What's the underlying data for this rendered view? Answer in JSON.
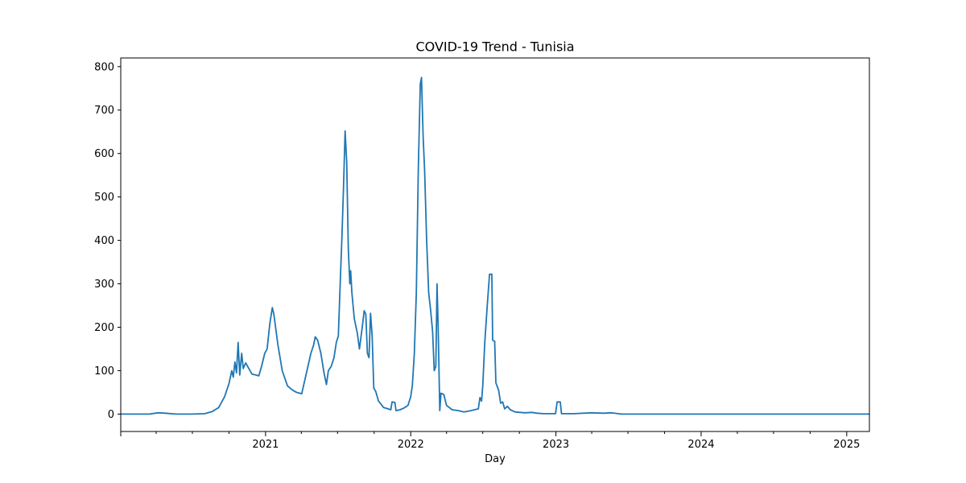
{
  "chart_data": {
    "type": "line",
    "title": "COVID-19 Trend - Tunisia",
    "xlabel": "Day",
    "ylabel": "",
    "xlim": [
      "2020-01-03",
      "2025-02-27"
    ],
    "ylim": [
      -40,
      820
    ],
    "grid": false,
    "legend": "none",
    "line_color": "#1f77b4",
    "y_ticks": [
      0,
      100,
      200,
      300,
      400,
      500,
      600,
      700,
      800
    ],
    "x_ticks": [
      {
        "date": "2021-01-01",
        "label": "2021"
      },
      {
        "date": "2022-01-01",
        "label": "2022"
      },
      {
        "date": "2023-01-01",
        "label": "2023"
      },
      {
        "date": "2024-01-01",
        "label": "2024"
      },
      {
        "date": "2025-01-01",
        "label": "2025"
      }
    ],
    "series": [
      {
        "values": [
          [
            "2020-01-03",
            0
          ],
          [
            "2020-03-15",
            0
          ],
          [
            "2020-04-05",
            3
          ],
          [
            "2020-04-25",
            2
          ],
          [
            "2020-05-20",
            0
          ],
          [
            "2020-07-01",
            0
          ],
          [
            "2020-08-01",
            1
          ],
          [
            "2020-08-20",
            6
          ],
          [
            "2020-09-05",
            15
          ],
          [
            "2020-09-20",
            40
          ],
          [
            "2020-10-01",
            70
          ],
          [
            "2020-10-08",
            100
          ],
          [
            "2020-10-12",
            85
          ],
          [
            "2020-10-16",
            120
          ],
          [
            "2020-10-20",
            95
          ],
          [
            "2020-10-24",
            165
          ],
          [
            "2020-10-28",
            90
          ],
          [
            "2020-11-02",
            140
          ],
          [
            "2020-11-06",
            105
          ],
          [
            "2020-11-12",
            118
          ],
          [
            "2020-11-20",
            105
          ],
          [
            "2020-11-28",
            92
          ],
          [
            "2020-12-08",
            90
          ],
          [
            "2020-12-15",
            88
          ],
          [
            "2020-12-22",
            110
          ],
          [
            "2020-12-30",
            140
          ],
          [
            "2021-01-05",
            150
          ],
          [
            "2021-01-12",
            210
          ],
          [
            "2021-01-18",
            245
          ],
          [
            "2021-01-22",
            230
          ],
          [
            "2021-02-01",
            160
          ],
          [
            "2021-02-12",
            100
          ],
          [
            "2021-02-25",
            65
          ],
          [
            "2021-03-10",
            55
          ],
          [
            "2021-03-20",
            50
          ],
          [
            "2021-04-02",
            47
          ],
          [
            "2021-04-15",
            100
          ],
          [
            "2021-04-25",
            140
          ],
          [
            "2021-05-02",
            160
          ],
          [
            "2021-05-06",
            178
          ],
          [
            "2021-05-12",
            170
          ],
          [
            "2021-05-20",
            140
          ],
          [
            "2021-05-28",
            95
          ],
          [
            "2021-06-03",
            68
          ],
          [
            "2021-06-08",
            100
          ],
          [
            "2021-06-15",
            110
          ],
          [
            "2021-06-22",
            130
          ],
          [
            "2021-06-28",
            165
          ],
          [
            "2021-07-03",
            180
          ],
          [
            "2021-07-07",
            285
          ],
          [
            "2021-07-12",
            410
          ],
          [
            "2021-07-16",
            520
          ],
          [
            "2021-07-20",
            652
          ],
          [
            "2021-07-24",
            580
          ],
          [
            "2021-07-28",
            380
          ],
          [
            "2021-08-01",
            300
          ],
          [
            "2021-08-03",
            330
          ],
          [
            "2021-08-06",
            280
          ],
          [
            "2021-08-12",
            220
          ],
          [
            "2021-08-20",
            185
          ],
          [
            "2021-08-25",
            150
          ],
          [
            "2021-09-01",
            200
          ],
          [
            "2021-09-06",
            238
          ],
          [
            "2021-09-10",
            230
          ],
          [
            "2021-09-14",
            140
          ],
          [
            "2021-09-18",
            130
          ],
          [
            "2021-09-22",
            232
          ],
          [
            "2021-09-26",
            180
          ],
          [
            "2021-09-30",
            60
          ],
          [
            "2021-10-05",
            52
          ],
          [
            "2021-10-12",
            30
          ],
          [
            "2021-10-25",
            15
          ],
          [
            "2021-11-05",
            12
          ],
          [
            "2021-11-12",
            10
          ],
          [
            "2021-11-15",
            28
          ],
          [
            "2021-11-22",
            27
          ],
          [
            "2021-11-25",
            8
          ],
          [
            "2021-12-05",
            10
          ],
          [
            "2021-12-15",
            14
          ],
          [
            "2021-12-25",
            20
          ],
          [
            "2022-01-01",
            40
          ],
          [
            "2022-01-05",
            65
          ],
          [
            "2022-01-10",
            140
          ],
          [
            "2022-01-15",
            280
          ],
          [
            "2022-01-20",
            560
          ],
          [
            "2022-01-25",
            760
          ],
          [
            "2022-01-28",
            775
          ],
          [
            "2022-02-01",
            640
          ],
          [
            "2022-02-05",
            560
          ],
          [
            "2022-02-10",
            400
          ],
          [
            "2022-02-15",
            280
          ],
          [
            "2022-02-20",
            240
          ],
          [
            "2022-02-25",
            190
          ],
          [
            "2022-03-01",
            100
          ],
          [
            "2022-03-05",
            110
          ],
          [
            "2022-03-08",
            300
          ],
          [
            "2022-03-11",
            200
          ],
          [
            "2022-03-15",
            8
          ],
          [
            "2022-03-18",
            48
          ],
          [
            "2022-03-25",
            45
          ],
          [
            "2022-04-01",
            20
          ],
          [
            "2022-04-15",
            10
          ],
          [
            "2022-05-01",
            8
          ],
          [
            "2022-05-15",
            5
          ],
          [
            "2022-06-01",
            8
          ],
          [
            "2022-06-20",
            12
          ],
          [
            "2022-06-24",
            38
          ],
          [
            "2022-06-28",
            30
          ],
          [
            "2022-07-01",
            65
          ],
          [
            "2022-07-06",
            165
          ],
          [
            "2022-07-12",
            245
          ],
          [
            "2022-07-18",
            322
          ],
          [
            "2022-07-24",
            322
          ],
          [
            "2022-07-26",
            170
          ],
          [
            "2022-07-31",
            168
          ],
          [
            "2022-08-03",
            72
          ],
          [
            "2022-08-10",
            55
          ],
          [
            "2022-08-15",
            25
          ],
          [
            "2022-08-20",
            28
          ],
          [
            "2022-08-25",
            12
          ],
          [
            "2022-09-01",
            18
          ],
          [
            "2022-09-08",
            10
          ],
          [
            "2022-09-20",
            5
          ],
          [
            "2022-10-15",
            3
          ],
          [
            "2022-11-01",
            4
          ],
          [
            "2022-11-15",
            2
          ],
          [
            "2022-12-01",
            1
          ],
          [
            "2022-12-31",
            1
          ],
          [
            "2023-01-04",
            28
          ],
          [
            "2023-01-12",
            28
          ],
          [
            "2023-01-15",
            1
          ],
          [
            "2023-02-15",
            1
          ],
          [
            "2023-04-01",
            3
          ],
          [
            "2023-05-01",
            2
          ],
          [
            "2023-05-20",
            3
          ],
          [
            "2023-06-15",
            0
          ],
          [
            "2025-02-27",
            0
          ]
        ]
      }
    ]
  }
}
